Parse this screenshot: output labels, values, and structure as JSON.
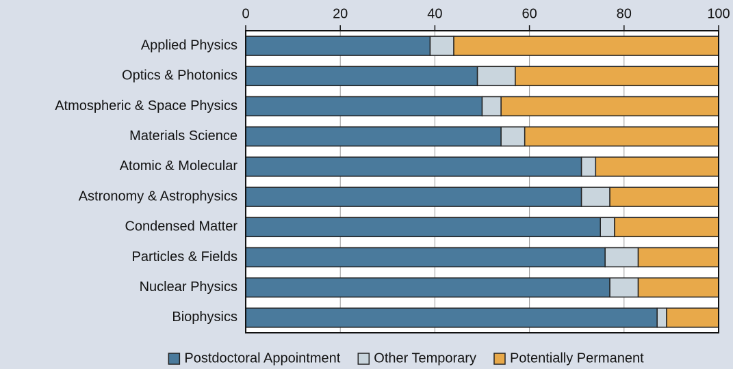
{
  "chart_data": {
    "type": "bar",
    "orientation": "horizontal",
    "stacked": true,
    "categories": [
      "Applied Physics",
      "Optics & Photonics",
      "Atmospheric & Space Physics",
      "Materials Science",
      "Atomic & Molecular",
      "Astronomy & Astrophysics",
      "Condensed Matter",
      "Particles & Fields",
      "Nuclear Physics",
      "Biophysics"
    ],
    "series": [
      {
        "name": "Postdoctoral Appointment",
        "color": "#4a7a9c",
        "values": [
          39,
          49,
          50,
          54,
          71,
          71,
          75,
          76,
          77,
          87
        ]
      },
      {
        "name": "Other Temporary",
        "color": "#c9d5dd",
        "values": [
          5,
          8,
          4,
          5,
          3,
          6,
          3,
          7,
          6,
          2
        ]
      },
      {
        "name": "Potentially Permanent",
        "color": "#e8a94a",
        "values": [
          56,
          43,
          46,
          41,
          26,
          23,
          22,
          17,
          17,
          11
        ]
      }
    ],
    "xlim": [
      0,
      100
    ],
    "xticks": [
      0,
      20,
      40,
      60,
      80,
      100
    ],
    "grid": true,
    "legend": "bottom"
  }
}
